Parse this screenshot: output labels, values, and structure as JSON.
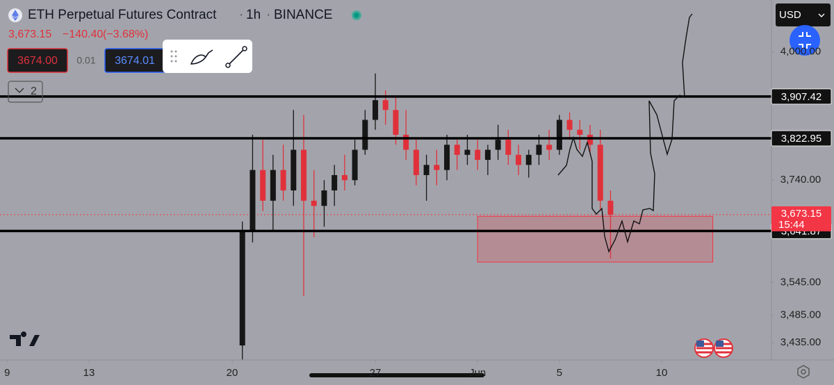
{
  "header": {
    "symbol": "ETH Perpetual Futures Contract",
    "interval": "1h",
    "exchange": "BINANCE",
    "last": "3,673.15",
    "change": "−140.40",
    "change_pct": "(−3.68%)"
  },
  "order_panel": {
    "sell": "3674.00",
    "spread": "0.01",
    "buy": "3674.01"
  },
  "collapse_count": "2",
  "currency": "USD",
  "chart_data": {
    "type": "candlestick",
    "x": [
      20.5,
      21.0,
      21.5,
      22.0,
      22.5,
      23.0,
      23.5,
      24.0,
      24.5,
      25.0,
      25.5,
      26.0,
      26.5,
      27.0,
      27.5,
      28.0,
      28.5,
      29.0,
      29.5,
      30.0,
      30.5,
      31.0,
      31.5,
      32.0,
      32.5,
      33.0,
      33.5,
      34.0,
      34.5,
      35.0,
      35.5,
      36.0,
      36.5,
      37.0,
      37.5,
      38.0,
      38.5
    ],
    "open": [
      3430,
      3640,
      3760,
      3700,
      3760,
      3720,
      3800,
      3700,
      3690,
      3720,
      3750,
      3740,
      3800,
      3860,
      3900,
      3880,
      3830,
      3800,
      3750,
      3770,
      3760,
      3810,
      3790,
      3800,
      3780,
      3800,
      3820,
      3790,
      3770,
      3790,
      3810,
      3800,
      3860,
      3840,
      3830,
      3810,
      3700
    ],
    "high": [
      3660,
      3830,
      3820,
      3790,
      3810,
      3880,
      3870,
      3760,
      3740,
      3770,
      3790,
      3820,
      3880,
      3955,
      3920,
      3910,
      3880,
      3820,
      3790,
      3800,
      3830,
      3820,
      3830,
      3820,
      3810,
      3850,
      3840,
      3810,
      3800,
      3830,
      3840,
      3870,
      3875,
      3860,
      3850,
      3840,
      3720
    ],
    "low": [
      3405,
      3620,
      3680,
      3640,
      3700,
      3690,
      3520,
      3630,
      3650,
      3690,
      3720,
      3730,
      3790,
      3840,
      3850,
      3810,
      3780,
      3730,
      3700,
      3730,
      3740,
      3760,
      3770,
      3760,
      3750,
      3780,
      3770,
      3750,
      3745,
      3770,
      3780,
      3790,
      3820,
      3800,
      3790,
      3680,
      3590
    ],
    "close": [
      3640,
      3760,
      3700,
      3760,
      3720,
      3800,
      3700,
      3690,
      3720,
      3750,
      3740,
      3800,
      3860,
      3900,
      3880,
      3830,
      3800,
      3750,
      3770,
      3760,
      3810,
      3790,
      3800,
      3780,
      3800,
      3820,
      3790,
      3770,
      3790,
      3810,
      3800,
      3860,
      3840,
      3830,
      3810,
      3700,
      3673.15
    ],
    "up_color": "#161616",
    "down_color": "#e0313b",
    "xlim": [
      8.65,
      46.3
    ],
    "xticks": [
      9,
      13,
      20,
      27,
      {
        "value": 32,
        "label": "Jun"
      },
      {
        "value": 36,
        "label": "5"
      },
      {
        "value": 41,
        "label": "10"
      }
    ],
    "ylim": [
      3404,
      4110
    ],
    "log": true,
    "yticks": [
      {
        "value": 3435,
        "label": "3,435.00"
      },
      {
        "value": 3485,
        "label": "3,485.00"
      },
      {
        "value": 3545,
        "label": "3,545.00"
      },
      {
        "value": 3740,
        "label": "3,740.00"
      },
      {
        "value": 4000,
        "label": "4,000.00"
      }
    ],
    "levels": [
      {
        "value": 3907.42,
        "label": "3,907.42"
      },
      {
        "value": 3822.95,
        "label": "3,822.95"
      },
      {
        "value": 3641.87,
        "label": "3,641.87"
      }
    ],
    "level_color": "#000000",
    "price_line": {
      "value": 3673.15,
      "label": "3,673.15",
      "countdown": "15:44",
      "color": "#f23645"
    },
    "zone": {
      "x": [
        32.0,
        43.5
      ],
      "y": [
        3583,
        3670
      ],
      "color": "#f23645"
    }
  }
}
